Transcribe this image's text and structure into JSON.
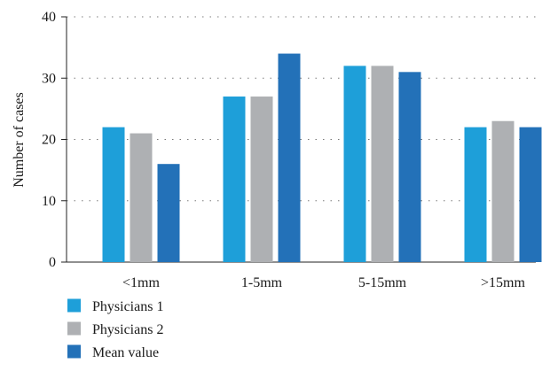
{
  "chart_data": {
    "type": "bar",
    "categories": [
      "<1mm",
      "1-5mm",
      "5-15mm",
      ">15mm"
    ],
    "series": [
      {
        "name": "Physicians 1",
        "values": [
          22,
          27,
          32,
          22
        ],
        "color": "#1e9fd9"
      },
      {
        "name": "Physicians 2",
        "values": [
          21,
          27,
          32,
          23
        ],
        "color": "#aeb0b3"
      },
      {
        "name": "Mean value",
        "values": [
          16,
          34,
          31,
          22
        ],
        "color": "#2371b8"
      }
    ],
    "title": "",
    "xlabel": "",
    "ylabel": "Number of cases",
    "ylim": [
      0,
      40
    ],
    "yticks": [
      0,
      10,
      20,
      30,
      40
    ],
    "grid": "horizontal dotted",
    "legend": "bottom-left"
  }
}
